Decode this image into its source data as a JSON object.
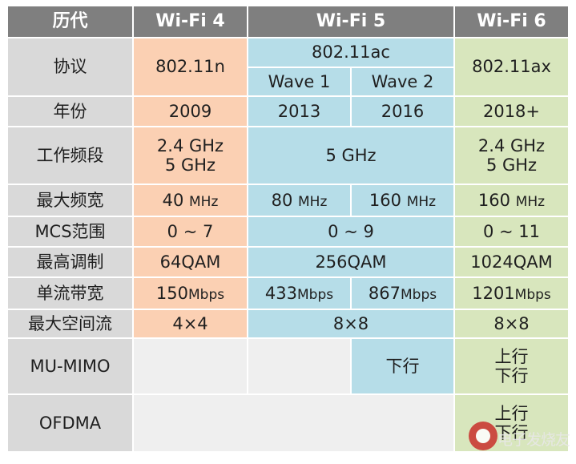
{
  "header": {
    "generation": "历代",
    "wifi4": "Wi-Fi 4",
    "wifi5": "Wi-Fi 5",
    "wifi6": "Wi-Fi 6"
  },
  "rows": {
    "protocol": {
      "label": "协议",
      "wifi4": "802.11n",
      "wifi5": "802.11ac",
      "wave1": "Wave 1",
      "wave2": "Wave 2",
      "wifi6": "802.11ax"
    },
    "year": {
      "label": "年份",
      "wifi4": "2009",
      "wave1": "2013",
      "wave2": "2016",
      "wifi6": "2018+"
    },
    "band": {
      "label": "工作频段",
      "wifi4_line1": "2.4 GHz",
      "wifi4_line2": "5 GHz",
      "wifi5": "5 GHz",
      "wifi6_line1": "2.4 GHz",
      "wifi6_line2": "5 GHz"
    },
    "bandwidth": {
      "label": "最大频宽",
      "wifi4_num": "40",
      "wave1_num": "80",
      "wave2_num": "160",
      "wifi6_num": "160",
      "unit": "MHz"
    },
    "mcs": {
      "label": "MCS范围",
      "wifi4": "0 ~ 7",
      "wifi5": "0 ~ 9",
      "wifi6": "0 ~ 11"
    },
    "modulation": {
      "label": "最高调制",
      "wifi4": "64QAM",
      "wifi5": "256QAM",
      "wifi6": "1024QAM"
    },
    "stream_rate": {
      "label": "单流带宽",
      "wifi4_num": "150",
      "wave1_num": "433",
      "wave2_num": "867",
      "wifi6_num": "1201",
      "unit": "Mbps"
    },
    "spatial_streams": {
      "label": "最大空间流",
      "wifi4": "4×4",
      "wifi5": "8×8",
      "wifi6": "8×8"
    },
    "mu_mimo": {
      "label": "MU-MIMO",
      "wave2": "下行",
      "wifi6_line1": "上行",
      "wifi6_line2": "下行"
    },
    "ofdma": {
      "label": "OFDMA",
      "wifi6_line1": "上行",
      "wifi6_line2": "下行"
    }
  },
  "watermark": {
    "text": "电子发烧友"
  }
}
